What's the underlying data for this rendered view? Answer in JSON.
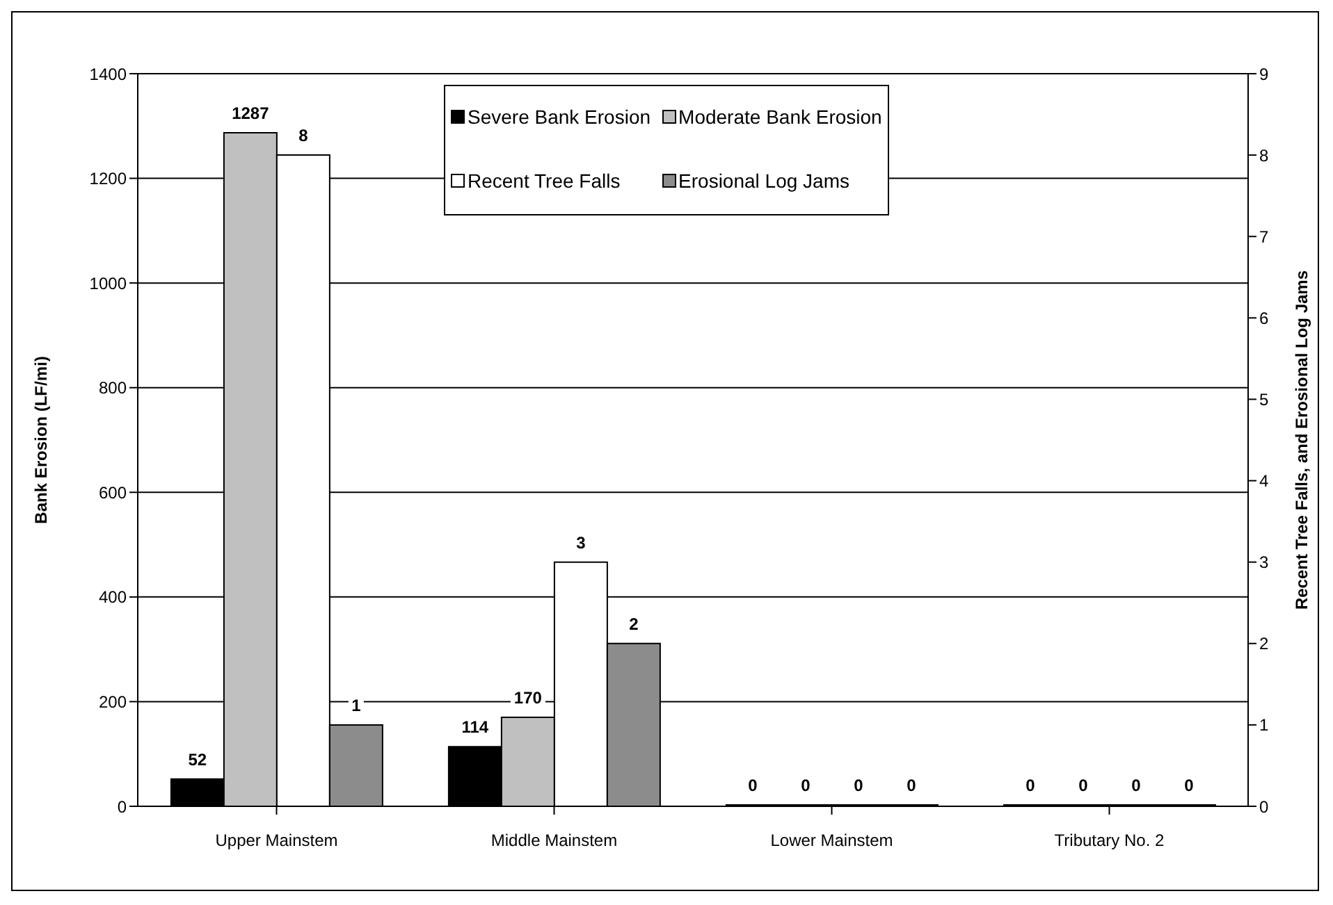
{
  "chart_data": {
    "type": "bar",
    "categories": [
      "Upper Mainstem",
      "Middle Mainstem",
      "Lower Mainstem",
      "Tributary No. 2"
    ],
    "ylabel": "Bank Erosion (LF/mi)",
    "y2label": "Recent Tree Falls, and Erosional Log Jams",
    "ylim": [
      0,
      1400
    ],
    "yticks": [
      0,
      200,
      400,
      600,
      800,
      1000,
      1200,
      1400
    ],
    "y2lim": [
      0,
      9
    ],
    "y2ticks": [
      0,
      1,
      2,
      3,
      4,
      5,
      6,
      7,
      8,
      9
    ],
    "grid": "y",
    "legend": "top",
    "data_labels": true,
    "series": [
      {
        "name": "Severe Bank Erosion",
        "color": "#000000",
        "values": [
          52,
          114,
          0,
          0
        ]
      },
      {
        "name": "Moderate Bank Erosion",
        "color": "#c0c0c0",
        "values": [
          1287,
          170,
          0,
          0
        ]
      },
      {
        "name": "Recent Tree Falls",
        "color": "#ffffff",
        "axis": "y2",
        "values": [
          8,
          3,
          0,
          0
        ]
      },
      {
        "name": "Erosional Log Jams",
        "color": "#8c8c8c",
        "axis": "y2",
        "values": [
          1,
          2,
          0,
          0
        ]
      }
    ]
  }
}
